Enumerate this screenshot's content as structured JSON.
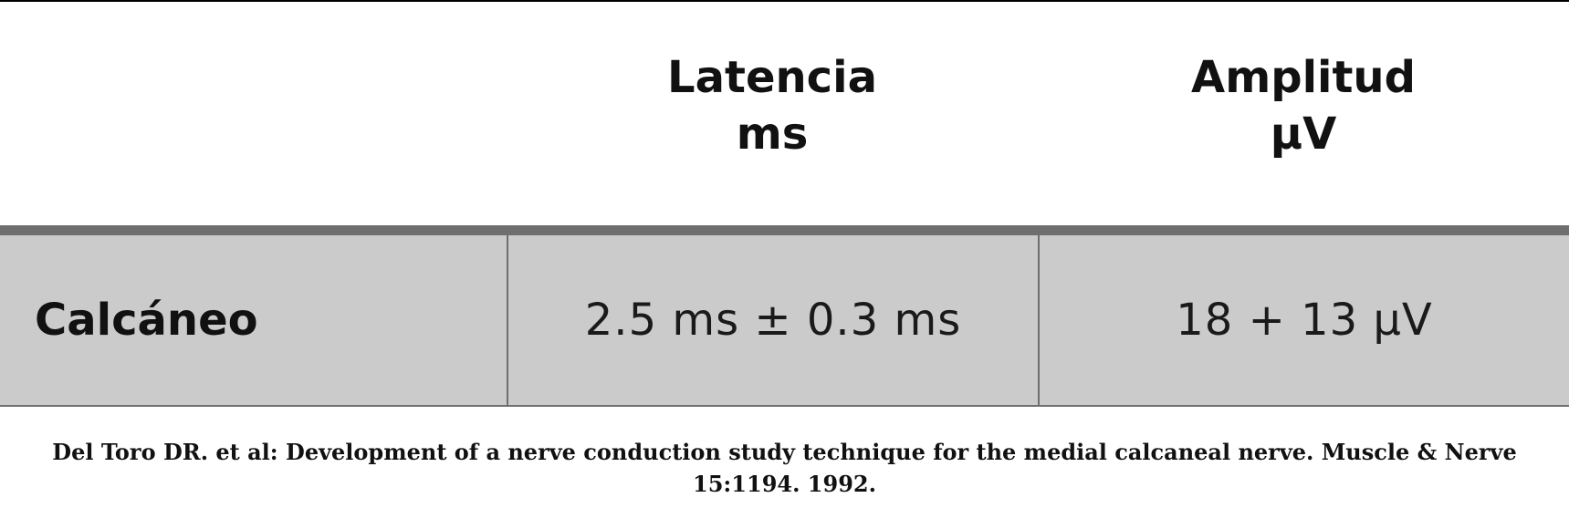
{
  "table": {
    "header": {
      "col1": "",
      "col2_line1": "Latencia",
      "col2_line2": "ms",
      "col3_line1": "Amplitud",
      "col3_line2": "μV"
    },
    "rows": [
      {
        "label": "Calcáneo",
        "latency": "2.5 ms ± 0.3 ms",
        "amplitude": "18 + 13 μV"
      }
    ]
  },
  "caption": "Del Toro DR. et al: Development of a nerve conduction study technique for the medial calcaneal nerve. Muscle & Nerve 15:1194. 1992."
}
